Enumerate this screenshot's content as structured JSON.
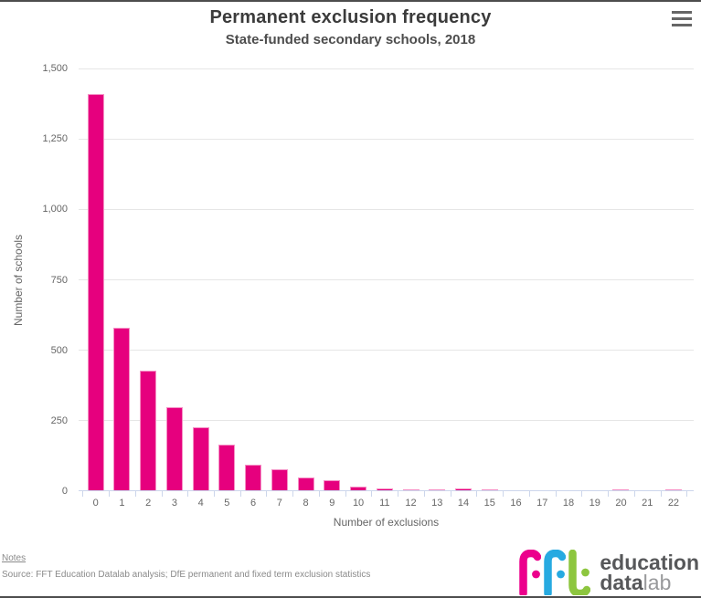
{
  "header": {
    "title": "Permanent exclusion frequency",
    "subtitle": "State-funded secondary schools, 2018"
  },
  "icons": {
    "context_menu": "hamburger-icon"
  },
  "chart_data": {
    "type": "bar",
    "title": "Permanent exclusion frequency",
    "subtitle": "State-funded secondary schools, 2018",
    "categories": [
      "0",
      "1",
      "2",
      "3",
      "4",
      "5",
      "6",
      "7",
      "8",
      "9",
      "10",
      "11",
      "12",
      "13",
      "14",
      "15",
      "16",
      "17",
      "18",
      "19",
      "20",
      "21",
      "22"
    ],
    "values": [
      1410,
      580,
      428,
      299,
      228,
      165,
      94,
      78,
      48,
      40,
      15,
      11,
      7,
      7,
      11,
      5,
      0,
      0,
      0,
      0,
      5,
      0,
      5
    ],
    "xlabel": "Number of exclusions",
    "ylabel": "Number of schools",
    "ylim": [
      0,
      1500
    ],
    "yticks": [
      0,
      250,
      500,
      750,
      1000,
      1250,
      1500
    ],
    "ytick_labels": [
      "0",
      "250",
      "500",
      "750",
      "1,000",
      "1,250",
      "1,500"
    ],
    "grid": true,
    "legend": "none",
    "bar_color": "#e6007e",
    "bar_border_color": "#f590c5",
    "axis_line_color": "#ccd6eb",
    "gridline_color": "#e6e6e6"
  },
  "axes": {
    "x_title": "Number of exclusions",
    "y_title": "Number of schools"
  },
  "footer": {
    "notes_label": "Notes",
    "source": "Source: FFT Education Datalab analysis; DfE permanent and fixed term exclusion statistics"
  },
  "logo": {
    "letters": [
      {
        "char": "f",
        "color": "#ec008c"
      },
      {
        "char": "f",
        "color": "#27aae1"
      },
      {
        "char": "t",
        "color": "#8dc63f"
      }
    ],
    "line1": "education",
    "line2_bold": "data",
    "line2_light": "lab"
  }
}
